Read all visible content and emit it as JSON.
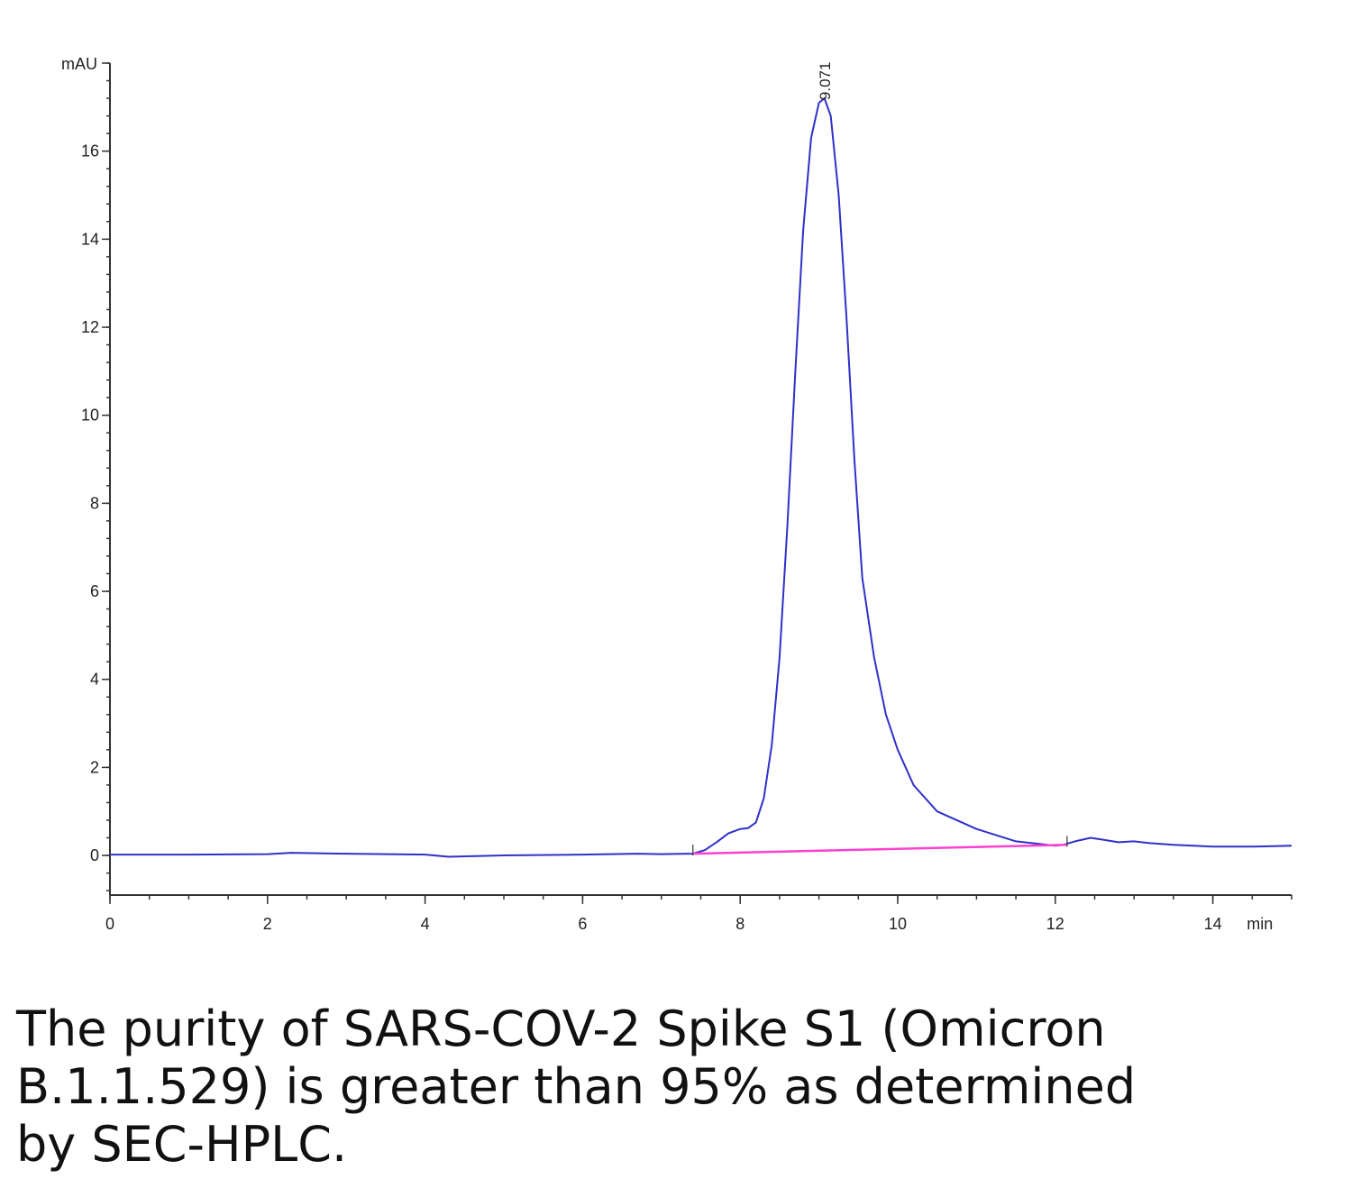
{
  "chart_data": {
    "type": "line",
    "ylabel": "mAU",
    "xunit": "min",
    "xlim": [
      0,
      15
    ],
    "ylim": [
      -0.9,
      18
    ],
    "x_ticks": [
      0,
      2,
      4,
      6,
      8,
      10,
      12,
      14
    ],
    "x_tick_labels": [
      "0",
      "2",
      "4",
      "6",
      "8",
      "10",
      "12",
      "14"
    ],
    "y_ticks": [
      0,
      2,
      4,
      6,
      8,
      10,
      12,
      14,
      16
    ],
    "y_tick_labels": [
      "0",
      "2",
      "4",
      "6",
      "8",
      "10",
      "12",
      "14",
      "16"
    ],
    "grid": false,
    "series": [
      {
        "color": "#3030c8",
        "x": [
          0,
          1,
          2,
          2.3,
          3,
          4,
          4.3,
          5,
          6,
          6.7,
          7,
          7.4,
          7.55,
          7.7,
          7.85,
          8.0,
          8.1,
          8.2,
          8.3,
          8.4,
          8.5,
          8.6,
          8.7,
          8.8,
          8.9,
          9.0,
          9.07,
          9.15,
          9.25,
          9.35,
          9.45,
          9.55,
          9.7,
          9.85,
          10.0,
          10.2,
          10.5,
          11.0,
          11.5,
          12.0,
          12.1,
          12.25,
          12.45,
          12.6,
          12.8,
          13.0,
          13.2,
          13.5,
          14.0,
          14.5,
          15.0
        ],
        "y": [
          0.02,
          0.02,
          0.03,
          0.06,
          0.04,
          0.02,
          -0.03,
          0.0,
          0.02,
          0.04,
          0.03,
          0.04,
          0.12,
          0.3,
          0.5,
          0.6,
          0.62,
          0.75,
          1.3,
          2.5,
          4.5,
          7.5,
          11.0,
          14.2,
          16.3,
          17.1,
          17.2,
          16.8,
          15.0,
          12.2,
          9.0,
          6.3,
          4.5,
          3.2,
          2.4,
          1.6,
          1.0,
          0.6,
          0.32,
          0.22,
          0.24,
          0.32,
          0.4,
          0.36,
          0.3,
          0.32,
          0.28,
          0.24,
          0.2,
          0.2,
          0.22
        ]
      },
      {
        "color": "#ff40d0",
        "x": [
          7.4,
          12.15
        ],
        "y": [
          0.04,
          0.24
        ]
      }
    ],
    "annotations": [
      {
        "text": "9.071",
        "x": 9.071,
        "y": 17.2
      }
    ]
  },
  "caption": "The purity of SARS-COV-2 Spike S1 (Omicron\nB.1.1.529) is greater than 95% as determined\nby SEC-HPLC."
}
